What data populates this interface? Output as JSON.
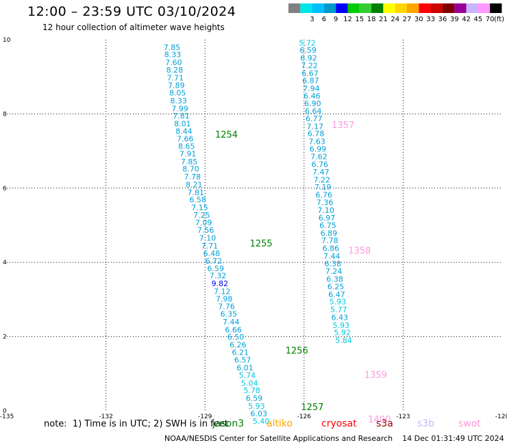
{
  "header": {
    "title": "12:00 – 23:59 UTC 03/10/2024",
    "subtitle": "12 hour collection of altimeter wave heights"
  },
  "colorbar": {
    "unit": "(ft)",
    "bins": [
      {
        "label": "",
        "color": "#808080"
      },
      {
        "label": "3",
        "color": "#00e5e5"
      },
      {
        "label": "6",
        "color": "#00bfff"
      },
      {
        "label": "9",
        "color": "#0099cc"
      },
      {
        "label": "12",
        "color": "#0000ff"
      },
      {
        "label": "15",
        "color": "#00cc00"
      },
      {
        "label": "18",
        "color": "#33cc33"
      },
      {
        "label": "21",
        "color": "#008000"
      },
      {
        "label": "24",
        "color": "#ffff00"
      },
      {
        "label": "27",
        "color": "#ffd700"
      },
      {
        "label": "30",
        "color": "#ffa500"
      },
      {
        "label": "33",
        "color": "#ff0000"
      },
      {
        "label": "36",
        "color": "#cc0000"
      },
      {
        "label": "39",
        "color": "#800000"
      },
      {
        "label": "42",
        "color": "#990099"
      },
      {
        "label": "45",
        "color": "#c8b4ff"
      },
      {
        "label": "70",
        "color": "#ff99ff"
      },
      {
        "label": "",
        "color": "#000000"
      }
    ]
  },
  "chart_data": {
    "type": "scatter",
    "xlim": [
      -135,
      -120
    ],
    "ylim": [
      0,
      10
    ],
    "x_ticks": [
      "-135",
      "-132",
      "-129",
      "-126",
      "-123",
      "-120"
    ],
    "y_ticks": [
      "0",
      "2",
      "4",
      "6",
      "8",
      "10"
    ],
    "grid": true,
    "tracks": [
      {
        "id": "left",
        "color": "#00a0d8",
        "points": [
          {
            "lon": -130.0,
            "lat": 9.8,
            "v": "7.85"
          },
          {
            "lon": -129.98,
            "lat": 9.6,
            "v": "8.33"
          },
          {
            "lon": -129.95,
            "lat": 9.39,
            "v": "7.60"
          },
          {
            "lon": -129.92,
            "lat": 9.19,
            "v": "8.28"
          },
          {
            "lon": -129.9,
            "lat": 8.98,
            "v": "7.71"
          },
          {
            "lon": -129.87,
            "lat": 8.77,
            "v": "7.89"
          },
          {
            "lon": -129.83,
            "lat": 8.57,
            "v": "8.05"
          },
          {
            "lon": -129.8,
            "lat": 8.36,
            "v": "8.33"
          },
          {
            "lon": -129.76,
            "lat": 8.15,
            "v": "7.99"
          },
          {
            "lon": -129.72,
            "lat": 7.95,
            "v": "7.81"
          },
          {
            "lon": -129.68,
            "lat": 7.74,
            "v": "8.01"
          },
          {
            "lon": -129.64,
            "lat": 7.54,
            "v": "8.44"
          },
          {
            "lon": -129.6,
            "lat": 7.33,
            "v": "7.66"
          },
          {
            "lon": -129.56,
            "lat": 7.13,
            "v": "8.65"
          },
          {
            "lon": -129.52,
            "lat": 6.93,
            "v": "7.91"
          },
          {
            "lon": -129.48,
            "lat": 6.72,
            "v": "7.85"
          },
          {
            "lon": -129.43,
            "lat": 6.52,
            "v": "8.70"
          },
          {
            "lon": -129.38,
            "lat": 6.31,
            "v": "7.78"
          },
          {
            "lon": -129.33,
            "lat": 6.1,
            "v": "8.21"
          },
          {
            "lon": -129.28,
            "lat": 5.89,
            "v": "7.81"
          },
          {
            "lon": -129.22,
            "lat": 5.69,
            "v": "6.58"
          },
          {
            "lon": -129.16,
            "lat": 5.48,
            "v": "7.15"
          },
          {
            "lon": -129.1,
            "lat": 5.28,
            "v": "7.25"
          },
          {
            "lon": -129.04,
            "lat": 5.07,
            "v": "7.09"
          },
          {
            "lon": -128.98,
            "lat": 4.87,
            "v": "7.56"
          },
          {
            "lon": -128.92,
            "lat": 4.66,
            "v": "7.10"
          },
          {
            "lon": -128.86,
            "lat": 4.45,
            "v": "7.71"
          },
          {
            "lon": -128.8,
            "lat": 4.24,
            "v": "6.48"
          },
          {
            "lon": -128.74,
            "lat": 4.04,
            "v": "6.72"
          },
          {
            "lon": -128.68,
            "lat": 3.84,
            "v": "6.59"
          },
          {
            "lon": -128.61,
            "lat": 3.64,
            "v": "7.32"
          },
          {
            "lon": -128.55,
            "lat": 3.43,
            "v": "9.82",
            "c": "#0000ff"
          },
          {
            "lon": -128.48,
            "lat": 3.22,
            "v": "7.12"
          },
          {
            "lon": -128.42,
            "lat": 3.02,
            "v": "7.98"
          },
          {
            "lon": -128.35,
            "lat": 2.81,
            "v": "7.76"
          },
          {
            "lon": -128.28,
            "lat": 2.61,
            "v": "6.35"
          },
          {
            "lon": -128.21,
            "lat": 2.4,
            "v": "7.44"
          },
          {
            "lon": -128.14,
            "lat": 2.19,
            "v": "6.66"
          },
          {
            "lon": -128.07,
            "lat": 1.99,
            "v": "6.50"
          },
          {
            "lon": -128.0,
            "lat": 1.78,
            "v": "6.26"
          },
          {
            "lon": -127.93,
            "lat": 1.58,
            "v": "6.21"
          },
          {
            "lon": -127.86,
            "lat": 1.37,
            "v": "6.57"
          },
          {
            "lon": -127.79,
            "lat": 1.16,
            "v": "6.01"
          },
          {
            "lon": -127.72,
            "lat": 0.96,
            "v": "5.74",
            "c": "#00c8e0"
          },
          {
            "lon": -127.65,
            "lat": 0.75,
            "v": "5.04",
            "c": "#00c8e0"
          },
          {
            "lon": -127.58,
            "lat": 0.55,
            "v": "5.78",
            "c": "#00c8e0"
          },
          {
            "lon": -127.51,
            "lat": 0.34,
            "v": "6.59"
          },
          {
            "lon": -127.44,
            "lat": 0.13,
            "v": "5.93",
            "c": "#00c8e0"
          },
          {
            "lon": -127.37,
            "lat": -0.07,
            "v": "6.03"
          },
          {
            "lon": -127.3,
            "lat": -0.28,
            "v": "5.40",
            "c": "#00c8e0"
          }
        ]
      },
      {
        "id": "right",
        "color": "#00a0d8",
        "points": [
          {
            "lon": -125.9,
            "lat": 9.92,
            "v": "5.72",
            "c": "#00c8e0"
          },
          {
            "lon": -125.88,
            "lat": 9.72,
            "v": "6.59"
          },
          {
            "lon": -125.86,
            "lat": 9.51,
            "v": "6.92"
          },
          {
            "lon": -125.84,
            "lat": 9.31,
            "v": "7.22"
          },
          {
            "lon": -125.82,
            "lat": 9.1,
            "v": "6.67"
          },
          {
            "lon": -125.8,
            "lat": 8.9,
            "v": "6.87"
          },
          {
            "lon": -125.78,
            "lat": 8.69,
            "v": "7.94"
          },
          {
            "lon": -125.76,
            "lat": 8.49,
            "v": "6.46"
          },
          {
            "lon": -125.74,
            "lat": 8.28,
            "v": "6.90"
          },
          {
            "lon": -125.72,
            "lat": 8.08,
            "v": "6.64"
          },
          {
            "lon": -125.7,
            "lat": 7.88,
            "v": "6.77"
          },
          {
            "lon": -125.67,
            "lat": 7.67,
            "v": "7.17"
          },
          {
            "lon": -125.64,
            "lat": 7.47,
            "v": "6.78"
          },
          {
            "lon": -125.61,
            "lat": 7.26,
            "v": "7.63"
          },
          {
            "lon": -125.58,
            "lat": 7.06,
            "v": "6.99"
          },
          {
            "lon": -125.55,
            "lat": 6.85,
            "v": "7.62"
          },
          {
            "lon": -125.52,
            "lat": 6.64,
            "v": "6.76"
          },
          {
            "lon": -125.49,
            "lat": 6.44,
            "v": "7.47"
          },
          {
            "lon": -125.46,
            "lat": 6.23,
            "v": "7.22"
          },
          {
            "lon": -125.43,
            "lat": 6.03,
            "v": "7.19"
          },
          {
            "lon": -125.4,
            "lat": 5.82,
            "v": "6.76"
          },
          {
            "lon": -125.37,
            "lat": 5.62,
            "v": "7.36"
          },
          {
            "lon": -125.34,
            "lat": 5.41,
            "v": "7.10"
          },
          {
            "lon": -125.31,
            "lat": 5.2,
            "v": "6.97"
          },
          {
            "lon": -125.28,
            "lat": 5.0,
            "v": "6.75"
          },
          {
            "lon": -125.25,
            "lat": 4.79,
            "v": "6.89"
          },
          {
            "lon": -125.22,
            "lat": 4.59,
            "v": "7.78"
          },
          {
            "lon": -125.19,
            "lat": 4.38,
            "v": "6.86"
          },
          {
            "lon": -125.16,
            "lat": 4.17,
            "v": "7.44"
          },
          {
            "lon": -125.13,
            "lat": 3.97,
            "v": "6.38"
          },
          {
            "lon": -125.1,
            "lat": 3.76,
            "v": "7.24"
          },
          {
            "lon": -125.07,
            "lat": 3.55,
            "v": "6.38"
          },
          {
            "lon": -125.04,
            "lat": 3.35,
            "v": "6.25"
          },
          {
            "lon": -125.01,
            "lat": 3.14,
            "v": "6.47"
          },
          {
            "lon": -124.98,
            "lat": 2.94,
            "v": "5.93",
            "c": "#00c8e0"
          },
          {
            "lon": -124.95,
            "lat": 2.73,
            "v": "5.77",
            "c": "#00c8e0"
          },
          {
            "lon": -124.92,
            "lat": 2.52,
            "v": "6.43"
          },
          {
            "lon": -124.88,
            "lat": 2.31,
            "v": "5.93",
            "c": "#00c8e0"
          },
          {
            "lon": -124.84,
            "lat": 2.11,
            "v": "5.92",
            "c": "#00c8e0"
          },
          {
            "lon": -124.8,
            "lat": 1.9,
            "v": "5.84",
            "c": "#00c8e0"
          }
        ]
      }
    ],
    "time_labels": [
      {
        "lon": -128.35,
        "lat": 7.45,
        "text": "1254",
        "color": "#008000"
      },
      {
        "lon": -127.3,
        "lat": 4.52,
        "text": "1255",
        "color": "#008000"
      },
      {
        "lon": -126.22,
        "lat": 1.63,
        "text": "1256",
        "color": "#008000"
      },
      {
        "lon": -125.75,
        "lat": 0.11,
        "text": "1257",
        "color": "#008000"
      },
      {
        "lon": -124.82,
        "lat": 7.71,
        "text": "1357",
        "color": "#ff99dd"
      },
      {
        "lon": -124.32,
        "lat": 4.33,
        "text": "1358",
        "color": "#ff99dd"
      },
      {
        "lon": -123.83,
        "lat": 0.98,
        "text": "1359",
        "color": "#ff99dd"
      },
      {
        "lon": -123.72,
        "lat": -0.22,
        "text": "1400",
        "color": "#ff99dd"
      }
    ]
  },
  "footer": {
    "note": "note:  1) Time is in UTC; 2) SWH is in feet",
    "satellites": [
      {
        "name": "jason3",
        "color": "#008000"
      },
      {
        "name": "altiko",
        "color": "#ffa500"
      },
      {
        "name": "cryosat",
        "color": "#ff0000"
      },
      {
        "name": "s3a",
        "color": "#990000"
      },
      {
        "name": "s3b",
        "color": "#c8b4ff"
      },
      {
        "name": "swot",
        "color": "#ff99dd"
      }
    ],
    "credit": "NOAA/NESDIS Center for Satellite Applications and Research    14 Dec 01:31:49 UTC 2024"
  }
}
